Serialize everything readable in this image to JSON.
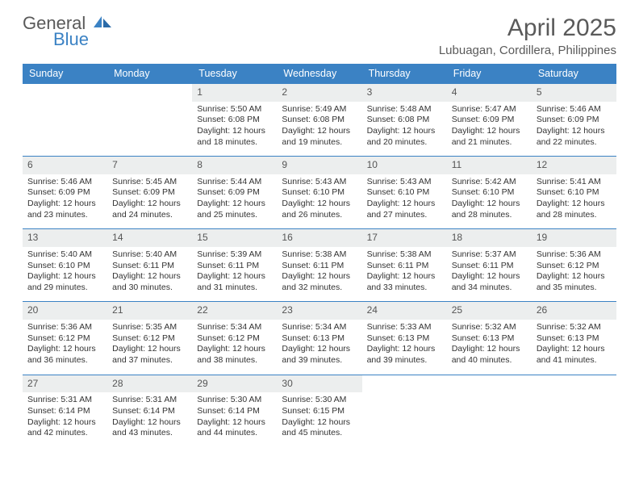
{
  "logo": {
    "word1": "General",
    "word2": "Blue"
  },
  "title": "April 2025",
  "location": "Lubuagan, Cordillera, Philippines",
  "colors": {
    "header_bg": "#3b82c4",
    "header_text": "#ffffff",
    "daynum_bg": "#eceeee",
    "border": "#3b82c4",
    "text": "#333333",
    "logo_gray": "#5a5a5a",
    "logo_blue": "#3b82c4"
  },
  "day_labels": [
    "Sunday",
    "Monday",
    "Tuesday",
    "Wednesday",
    "Thursday",
    "Friday",
    "Saturday"
  ],
  "weeks": [
    [
      {
        "n": "",
        "sr": "",
        "ss": "",
        "dl": ""
      },
      {
        "n": "",
        "sr": "",
        "ss": "",
        "dl": ""
      },
      {
        "n": "1",
        "sr": "Sunrise: 5:50 AM",
        "ss": "Sunset: 6:08 PM",
        "dl": "Daylight: 12 hours and 18 minutes."
      },
      {
        "n": "2",
        "sr": "Sunrise: 5:49 AM",
        "ss": "Sunset: 6:08 PM",
        "dl": "Daylight: 12 hours and 19 minutes."
      },
      {
        "n": "3",
        "sr": "Sunrise: 5:48 AM",
        "ss": "Sunset: 6:08 PM",
        "dl": "Daylight: 12 hours and 20 minutes."
      },
      {
        "n": "4",
        "sr": "Sunrise: 5:47 AM",
        "ss": "Sunset: 6:09 PM",
        "dl": "Daylight: 12 hours and 21 minutes."
      },
      {
        "n": "5",
        "sr": "Sunrise: 5:46 AM",
        "ss": "Sunset: 6:09 PM",
        "dl": "Daylight: 12 hours and 22 minutes."
      }
    ],
    [
      {
        "n": "6",
        "sr": "Sunrise: 5:46 AM",
        "ss": "Sunset: 6:09 PM",
        "dl": "Daylight: 12 hours and 23 minutes."
      },
      {
        "n": "7",
        "sr": "Sunrise: 5:45 AM",
        "ss": "Sunset: 6:09 PM",
        "dl": "Daylight: 12 hours and 24 minutes."
      },
      {
        "n": "8",
        "sr": "Sunrise: 5:44 AM",
        "ss": "Sunset: 6:09 PM",
        "dl": "Daylight: 12 hours and 25 minutes."
      },
      {
        "n": "9",
        "sr": "Sunrise: 5:43 AM",
        "ss": "Sunset: 6:10 PM",
        "dl": "Daylight: 12 hours and 26 minutes."
      },
      {
        "n": "10",
        "sr": "Sunrise: 5:43 AM",
        "ss": "Sunset: 6:10 PM",
        "dl": "Daylight: 12 hours and 27 minutes."
      },
      {
        "n": "11",
        "sr": "Sunrise: 5:42 AM",
        "ss": "Sunset: 6:10 PM",
        "dl": "Daylight: 12 hours and 28 minutes."
      },
      {
        "n": "12",
        "sr": "Sunrise: 5:41 AM",
        "ss": "Sunset: 6:10 PM",
        "dl": "Daylight: 12 hours and 28 minutes."
      }
    ],
    [
      {
        "n": "13",
        "sr": "Sunrise: 5:40 AM",
        "ss": "Sunset: 6:10 PM",
        "dl": "Daylight: 12 hours and 29 minutes."
      },
      {
        "n": "14",
        "sr": "Sunrise: 5:40 AM",
        "ss": "Sunset: 6:11 PM",
        "dl": "Daylight: 12 hours and 30 minutes."
      },
      {
        "n": "15",
        "sr": "Sunrise: 5:39 AM",
        "ss": "Sunset: 6:11 PM",
        "dl": "Daylight: 12 hours and 31 minutes."
      },
      {
        "n": "16",
        "sr": "Sunrise: 5:38 AM",
        "ss": "Sunset: 6:11 PM",
        "dl": "Daylight: 12 hours and 32 minutes."
      },
      {
        "n": "17",
        "sr": "Sunrise: 5:38 AM",
        "ss": "Sunset: 6:11 PM",
        "dl": "Daylight: 12 hours and 33 minutes."
      },
      {
        "n": "18",
        "sr": "Sunrise: 5:37 AM",
        "ss": "Sunset: 6:11 PM",
        "dl": "Daylight: 12 hours and 34 minutes."
      },
      {
        "n": "19",
        "sr": "Sunrise: 5:36 AM",
        "ss": "Sunset: 6:12 PM",
        "dl": "Daylight: 12 hours and 35 minutes."
      }
    ],
    [
      {
        "n": "20",
        "sr": "Sunrise: 5:36 AM",
        "ss": "Sunset: 6:12 PM",
        "dl": "Daylight: 12 hours and 36 minutes."
      },
      {
        "n": "21",
        "sr": "Sunrise: 5:35 AM",
        "ss": "Sunset: 6:12 PM",
        "dl": "Daylight: 12 hours and 37 minutes."
      },
      {
        "n": "22",
        "sr": "Sunrise: 5:34 AM",
        "ss": "Sunset: 6:12 PM",
        "dl": "Daylight: 12 hours and 38 minutes."
      },
      {
        "n": "23",
        "sr": "Sunrise: 5:34 AM",
        "ss": "Sunset: 6:13 PM",
        "dl": "Daylight: 12 hours and 39 minutes."
      },
      {
        "n": "24",
        "sr": "Sunrise: 5:33 AM",
        "ss": "Sunset: 6:13 PM",
        "dl": "Daylight: 12 hours and 39 minutes."
      },
      {
        "n": "25",
        "sr": "Sunrise: 5:32 AM",
        "ss": "Sunset: 6:13 PM",
        "dl": "Daylight: 12 hours and 40 minutes."
      },
      {
        "n": "26",
        "sr": "Sunrise: 5:32 AM",
        "ss": "Sunset: 6:13 PM",
        "dl": "Daylight: 12 hours and 41 minutes."
      }
    ],
    [
      {
        "n": "27",
        "sr": "Sunrise: 5:31 AM",
        "ss": "Sunset: 6:14 PM",
        "dl": "Daylight: 12 hours and 42 minutes."
      },
      {
        "n": "28",
        "sr": "Sunrise: 5:31 AM",
        "ss": "Sunset: 6:14 PM",
        "dl": "Daylight: 12 hours and 43 minutes."
      },
      {
        "n": "29",
        "sr": "Sunrise: 5:30 AM",
        "ss": "Sunset: 6:14 PM",
        "dl": "Daylight: 12 hours and 44 minutes."
      },
      {
        "n": "30",
        "sr": "Sunrise: 5:30 AM",
        "ss": "Sunset: 6:15 PM",
        "dl": "Daylight: 12 hours and 45 minutes."
      },
      {
        "n": "",
        "sr": "",
        "ss": "",
        "dl": ""
      },
      {
        "n": "",
        "sr": "",
        "ss": "",
        "dl": ""
      },
      {
        "n": "",
        "sr": "",
        "ss": "",
        "dl": ""
      }
    ]
  ]
}
